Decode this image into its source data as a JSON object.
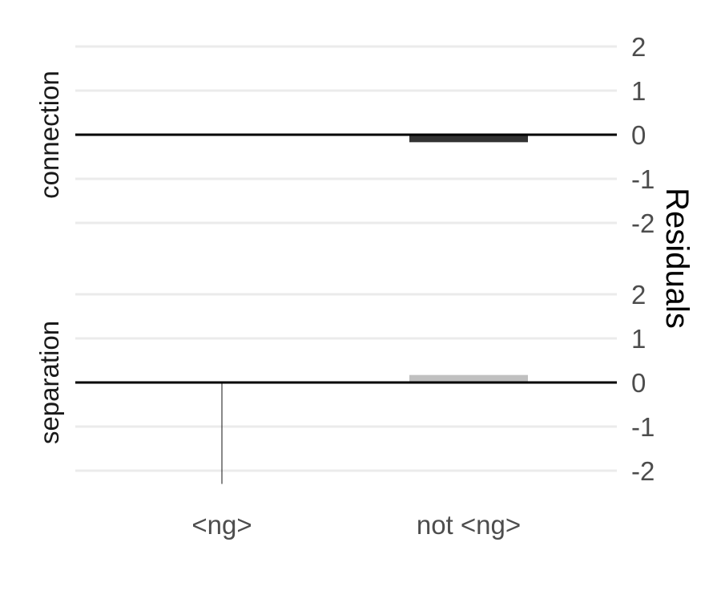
{
  "chart_data": {
    "type": "bar",
    "categories": [
      "<ng>",
      "not <ng>"
    ],
    "ylabel": "Residuals",
    "ylim": [
      -2.3,
      2.3
    ],
    "yticks": [
      2,
      1,
      0,
      -1,
      -2
    ],
    "panels": [
      {
        "name": "connection",
        "values": [
          0.02,
          -0.17
        ],
        "colors": [
          "#d9d9d9",
          "#333333"
        ]
      },
      {
        "name": "separation",
        "values": [
          -2.3,
          0.17
        ],
        "colors": [
          "#111111",
          "#c0c0c0"
        ]
      }
    ],
    "grid": true,
    "legend": "none"
  }
}
